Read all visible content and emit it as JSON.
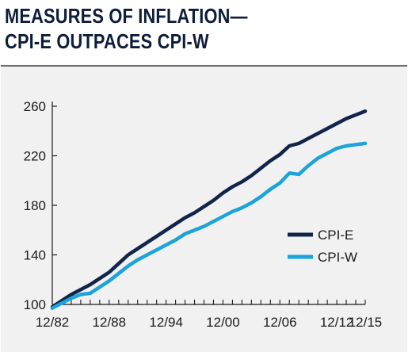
{
  "header": {
    "title_line1": "MEASURES OF INFLATION—",
    "title_line2": "CPI-E OUTPACES CPI-W"
  },
  "colors": {
    "title": "#0f1d3a",
    "panel_background": "#f1f1f1",
    "panel_rule": "#6b6b6b",
    "axis": "#1b1b1b"
  },
  "chart_data": {
    "type": "line",
    "title": "MEASURES OF INFLATION— CPI-E OUTPACES CPI-W",
    "xlabel": "",
    "ylabel": "",
    "x_range": [
      1982.92,
      2015.92
    ],
    "ylim": [
      100,
      260
    ],
    "x_tick_labels": [
      {
        "x": 1982.92,
        "label": "12/82"
      },
      {
        "x": 1988.92,
        "label": "12/88"
      },
      {
        "x": 1994.92,
        "label": "12/94"
      },
      {
        "x": 2000.92,
        "label": "12/00"
      },
      {
        "x": 2006.92,
        "label": "12/06"
      },
      {
        "x": 2012.92,
        "label": "12/12"
      },
      {
        "x": 2015.92,
        "label": "12/15"
      }
    ],
    "y_ticks": [
      100,
      140,
      180,
      220,
      260
    ],
    "grid": false,
    "legend_position": "right",
    "x": [
      1982.92,
      1983.92,
      1984.92,
      1985.92,
      1986.92,
      1987.92,
      1988.92,
      1989.92,
      1990.92,
      1991.92,
      1992.92,
      1993.92,
      1994.92,
      1995.92,
      1996.92,
      1997.92,
      1998.92,
      1999.92,
      2000.92,
      2001.92,
      2002.92,
      2003.92,
      2004.92,
      2005.92,
      2006.92,
      2007.92,
      2008.92,
      2009.92,
      2010.92,
      2011.92,
      2012.92,
      2013.92,
      2014.92,
      2015.92
    ],
    "series": [
      {
        "name": "CPI-E",
        "color": "#11254a",
        "values": [
          98,
          103,
          108,
          112,
          116,
          121,
          126,
          133,
          140,
          145,
          150,
          155,
          160,
          165,
          170,
          174,
          179,
          184,
          190,
          195,
          199,
          204,
          210,
          216,
          221,
          228,
          230,
          234,
          238,
          242,
          246,
          250,
          253,
          256
        ]
      },
      {
        "name": "CPI-W",
        "color": "#1ca3d9",
        "values": [
          97,
          101,
          105,
          108,
          109,
          114,
          119,
          125,
          131,
          136,
          140,
          144,
          148,
          152,
          157,
          160,
          163,
          167,
          171,
          175,
          178,
          182,
          187,
          193,
          198,
          206,
          205,
          212,
          218,
          222,
          226,
          228,
          229,
          230
        ]
      }
    ]
  }
}
